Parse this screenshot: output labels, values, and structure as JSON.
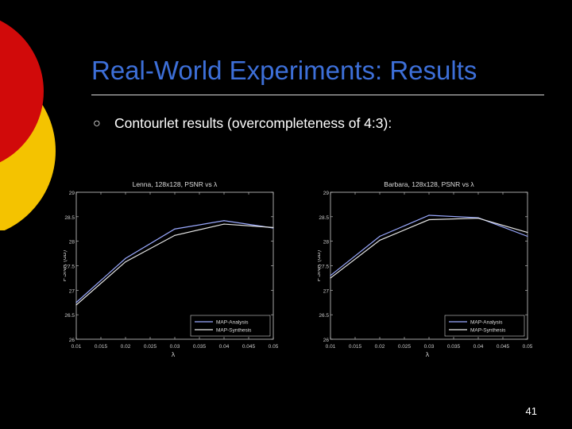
{
  "slide": {
    "title": "Real-World Experiments: Results",
    "bullet_marker": "○",
    "bullet_text": "Contourlet results (overcompleteness of 4:3):",
    "page_number": "41"
  },
  "colors": {
    "title": "#3d6fd8",
    "background": "#000000",
    "deco_red": "#d10a0a",
    "deco_yellow": "#f4c300",
    "series_analysis": "#9aa9ff",
    "series_synthesis": "#e6e6e6",
    "axis": "#cfcfcf"
  },
  "chart_data": [
    {
      "type": "line",
      "title": "Lenna, 128x128, PSNR vs λ",
      "xlabel": "λ",
      "ylabel": "PSNR (dB)",
      "xlim": [
        0.01,
        0.05
      ],
      "ylim": [
        26,
        29
      ],
      "xticks": [
        "0.01",
        "0.015",
        "0.02",
        "0.025",
        "0.03",
        "0.035",
        "0.04",
        "0.045",
        "0.05"
      ],
      "yticks": [
        "26",
        "26.5",
        "27",
        "27.5",
        "28",
        "28.5",
        "29"
      ],
      "legend_position": "bottom-right",
      "grid": false,
      "series": [
        {
          "name": "MAP-Analysis",
          "x": [
            0.01,
            0.02,
            0.03,
            0.04,
            0.05
          ],
          "values": [
            26.75,
            27.65,
            28.25,
            28.42,
            28.27
          ]
        },
        {
          "name": "MAP-Synthesis",
          "x": [
            0.01,
            0.02,
            0.03,
            0.04,
            0.05
          ],
          "values": [
            26.7,
            27.58,
            28.12,
            28.35,
            28.28
          ]
        }
      ]
    },
    {
      "type": "line",
      "title": "Barbara, 128x128, PSNR vs λ",
      "xlabel": "λ",
      "ylabel": "PSNR (dB)",
      "xlim": [
        0.01,
        0.05
      ],
      "ylim": [
        26,
        29
      ],
      "xticks": [
        "0.01",
        "0.015",
        "0.02",
        "0.025",
        "0.03",
        "0.035",
        "0.04",
        "0.045",
        "0.05"
      ],
      "yticks": [
        "26",
        "26.5",
        "27",
        "27.5",
        "28",
        "28.5",
        "29"
      ],
      "legend_position": "bottom-right",
      "grid": false,
      "series": [
        {
          "name": "MAP-Analysis",
          "x": [
            0.01,
            0.02,
            0.03,
            0.04,
            0.05
          ],
          "values": [
            27.3,
            28.1,
            28.53,
            28.48,
            28.1
          ]
        },
        {
          "name": "MAP-Synthesis",
          "x": [
            0.01,
            0.02,
            0.03,
            0.04,
            0.05
          ],
          "values": [
            27.25,
            28.02,
            28.44,
            28.47,
            28.18
          ]
        }
      ]
    }
  ]
}
